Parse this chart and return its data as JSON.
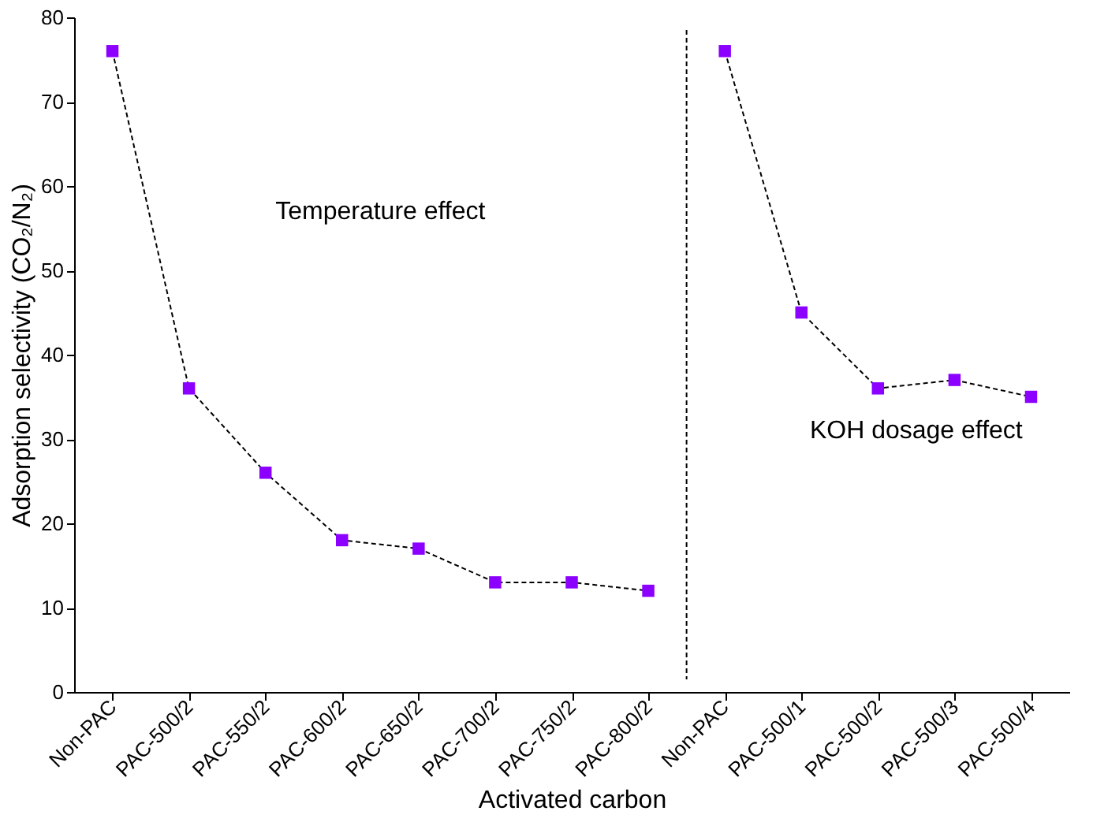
{
  "chart_data": {
    "type": "line",
    "xlabel": "Activated carbon",
    "ylabel": "Adsorption selectivity (CO₂/N₂)",
    "categories": [
      "Non-PAC",
      "PAC-500/2",
      "PAC-550/2",
      "PAC-600/2",
      "PAC-650/2",
      "PAC-700/2",
      "PAC-750/2",
      "PAC-800/2",
      "Non-PAC",
      "PAC-500/1",
      "PAC-500/2",
      "PAC-500/3",
      "PAC-500/4"
    ],
    "series": [
      {
        "color": "#8b00ff",
        "values": [
          76,
          36,
          26,
          18,
          17,
          13,
          13,
          12,
          null,
          null,
          null,
          null,
          null
        ]
      },
      {
        "color": "#8b00ff",
        "values": [
          null,
          null,
          null,
          null,
          null,
          null,
          null,
          null,
          76,
          45,
          36,
          37,
          35
        ]
      }
    ],
    "ylim": [
      0,
      80
    ],
    "yticks": [
      0,
      10,
      20,
      30,
      40,
      50,
      60,
      70,
      80
    ],
    "marker": "square",
    "line_style": "dashed",
    "grid": false,
    "annotations": [
      "Temperature effect",
      "KOH dosage effect"
    ]
  }
}
